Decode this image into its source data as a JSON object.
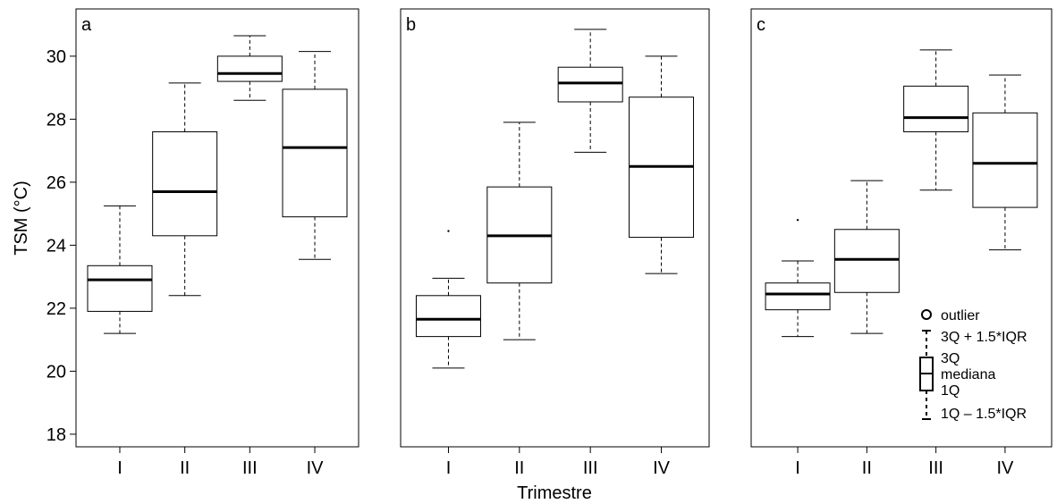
{
  "chart_data": {
    "type": "box",
    "ylabel": "TSM (°C)",
    "xlabel": "Trimestre",
    "ylim": [
      17.6,
      31.5
    ],
    "yticks": [
      18,
      20,
      22,
      24,
      26,
      28,
      30
    ],
    "categories": [
      "I",
      "II",
      "III",
      "IV"
    ],
    "grid": false,
    "panels": [
      {
        "label": "a",
        "boxes": [
          {
            "category": "I",
            "whisker_low": 21.2,
            "q1": 21.9,
            "median": 22.9,
            "q3": 23.35,
            "whisker_high": 25.25,
            "outliers": []
          },
          {
            "category": "II",
            "whisker_low": 22.4,
            "q1": 24.3,
            "median": 25.7,
            "q3": 27.6,
            "whisker_high": 29.15,
            "outliers": []
          },
          {
            "category": "III",
            "whisker_low": 28.6,
            "q1": 29.2,
            "median": 29.45,
            "q3": 30.0,
            "whisker_high": 30.65,
            "outliers": []
          },
          {
            "category": "IV",
            "whisker_low": 23.55,
            "q1": 24.9,
            "median": 27.1,
            "q3": 28.95,
            "whisker_high": 30.15,
            "outliers": []
          }
        ]
      },
      {
        "label": "b",
        "boxes": [
          {
            "category": "I",
            "whisker_low": 20.1,
            "q1": 21.1,
            "median": 21.65,
            "q3": 22.4,
            "whisker_high": 22.95,
            "outliers": [
              24.45
            ]
          },
          {
            "category": "II",
            "whisker_low": 21.0,
            "q1": 22.8,
            "median": 24.3,
            "q3": 25.85,
            "whisker_high": 27.9,
            "outliers": []
          },
          {
            "category": "III",
            "whisker_low": 26.95,
            "q1": 28.55,
            "median": 29.15,
            "q3": 29.65,
            "whisker_high": 30.85,
            "outliers": []
          },
          {
            "category": "IV",
            "whisker_low": 23.1,
            "q1": 24.25,
            "median": 26.5,
            "q3": 28.7,
            "whisker_high": 30.0,
            "outliers": []
          }
        ]
      },
      {
        "label": "c",
        "boxes": [
          {
            "category": "I",
            "whisker_low": 21.1,
            "q1": 21.95,
            "median": 22.45,
            "q3": 22.8,
            "whisker_high": 23.5,
            "outliers": [
              24.8
            ]
          },
          {
            "category": "II",
            "whisker_low": 21.2,
            "q1": 22.5,
            "median": 23.55,
            "q3": 24.5,
            "whisker_high": 26.05,
            "outliers": []
          },
          {
            "category": "III",
            "whisker_low": 25.75,
            "q1": 27.6,
            "median": 28.05,
            "q3": 29.05,
            "whisker_high": 30.2,
            "outliers": []
          },
          {
            "category": "IV",
            "whisker_low": 23.85,
            "q1": 25.2,
            "median": 26.6,
            "q3": 28.2,
            "whisker_high": 29.4,
            "outliers": []
          }
        ]
      }
    ],
    "legend": {
      "placement": "bottom-right of panel c",
      "items": {
        "outlier": "outlier",
        "upper_whisker": "3Q + 1.5*IQR",
        "q3": "3Q",
        "median": "mediana",
        "q1": "1Q",
        "lower_whisker": "1Q – 1.5*IQR"
      }
    }
  }
}
